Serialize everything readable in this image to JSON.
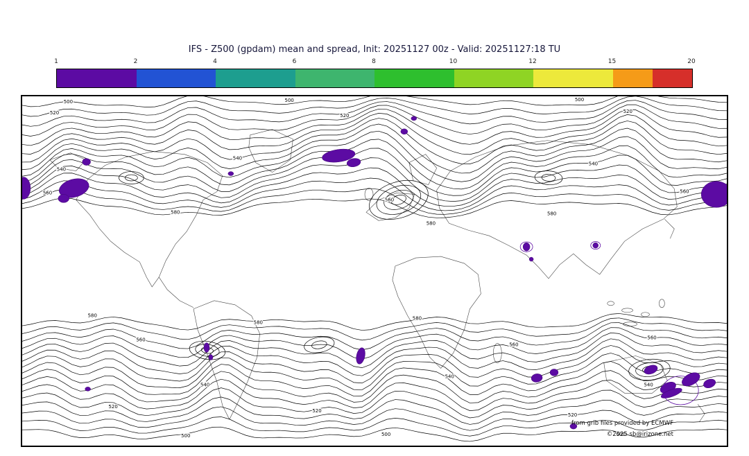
{
  "header": {
    "title": "IFS - Z500 (gpdam) mean and spread, Init: 20251127 00z - Valid: 20251127:18 TU"
  },
  "colorbar": {
    "tick_labels": [
      "1",
      "2",
      "4",
      "6",
      "8",
      "10",
      "12",
      "15",
      "20"
    ],
    "tick_positions": [
      0,
      1,
      2,
      3,
      4,
      5,
      6,
      7,
      8
    ],
    "segments": [
      {
        "color": "#5c0ba3",
        "span": 1
      },
      {
        "color": "#2253d4",
        "span": 1
      },
      {
        "color": "#1d9e8f",
        "span": 1
      },
      {
        "color": "#3eb56e",
        "span": 1
      },
      {
        "color": "#2ebf2e",
        "span": 1
      },
      {
        "color": "#8fd424",
        "span": 1
      },
      {
        "color": "#ede93b",
        "span": 1
      },
      {
        "color": "#f59b18",
        "span": 0.5
      },
      {
        "color": "#d62f2a",
        "span": 0.5
      }
    ]
  },
  "map": {
    "contour_labels": [
      "500",
      "520",
      "540",
      "560",
      "580"
    ],
    "attribution_line1": "from grib files provided by ECMWF",
    "attribution_line2": "©2025 sb@irizone.net"
  },
  "chart_data": {
    "type": "heatmap",
    "subtype": "global contour map (equirectangular world)",
    "title": "IFS - Z500 (gpdam) mean and spread, Init: 20251127 00z - Valid: 20251127:18 TU",
    "model": "IFS",
    "variable": "Z500",
    "units": "gpdam",
    "init": "20251127 00z",
    "valid": "20251127:18 TU",
    "mean_contour_labels": [
      500,
      520,
      540,
      560,
      580
    ],
    "spread_scale_levels": [
      1,
      2,
      4,
      6,
      8,
      10,
      12,
      15,
      20
    ],
    "spread_scale_colors": [
      "#5c0ba3",
      "#2253d4",
      "#1d9e8f",
      "#3eb56e",
      "#2ebf2e",
      "#8fd424",
      "#ede93b",
      "#f59b18",
      "#d62f2a"
    ],
    "visible_shading": "purple patches (spread ~1-2 gpdam) over the North Pacific, northern North America, North Atlantic, East Asia and the Southern Ocean storm track",
    "legend_position": "top horizontal colorbar",
    "grid": false
  }
}
